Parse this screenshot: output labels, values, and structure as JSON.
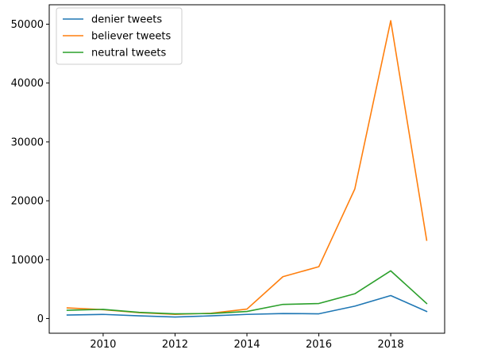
{
  "chart_data": {
    "type": "line",
    "title": "",
    "xlabel": "",
    "ylabel": "",
    "x": [
      2009,
      2010,
      2011,
      2012,
      2013,
      2014,
      2015,
      2016,
      2017,
      2018,
      2019
    ],
    "xlim": [
      2008.5,
      2019.5
    ],
    "ylim": [
      -2500,
      53300
    ],
    "x_ticks": [
      2010,
      2012,
      2014,
      2016,
      2018
    ],
    "x_tick_labels": [
      "2010",
      "2012",
      "2014",
      "2016",
      "2018"
    ],
    "y_ticks": [
      0,
      10000,
      20000,
      30000,
      40000,
      50000
    ],
    "y_tick_labels": [
      "0",
      "10000",
      "20000",
      "30000",
      "40000",
      "50000"
    ],
    "grid": false,
    "legend_position": "top-left",
    "series": [
      {
        "name": "denier tweets",
        "color": "#1f77b4",
        "values": [
          600,
          700,
          450,
          250,
          450,
          700,
          850,
          800,
          2100,
          3900,
          1200
        ]
      },
      {
        "name": "believer tweets",
        "color": "#ff7f0e",
        "values": [
          1800,
          1500,
          1000,
          700,
          900,
          1600,
          7100,
          8800,
          22000,
          50600,
          13300
        ]
      },
      {
        "name": "neutral tweets",
        "color": "#2ca02c",
        "values": [
          1400,
          1550,
          1050,
          800,
          850,
          1200,
          2400,
          2550,
          4200,
          8100,
          2550
        ]
      }
    ]
  }
}
